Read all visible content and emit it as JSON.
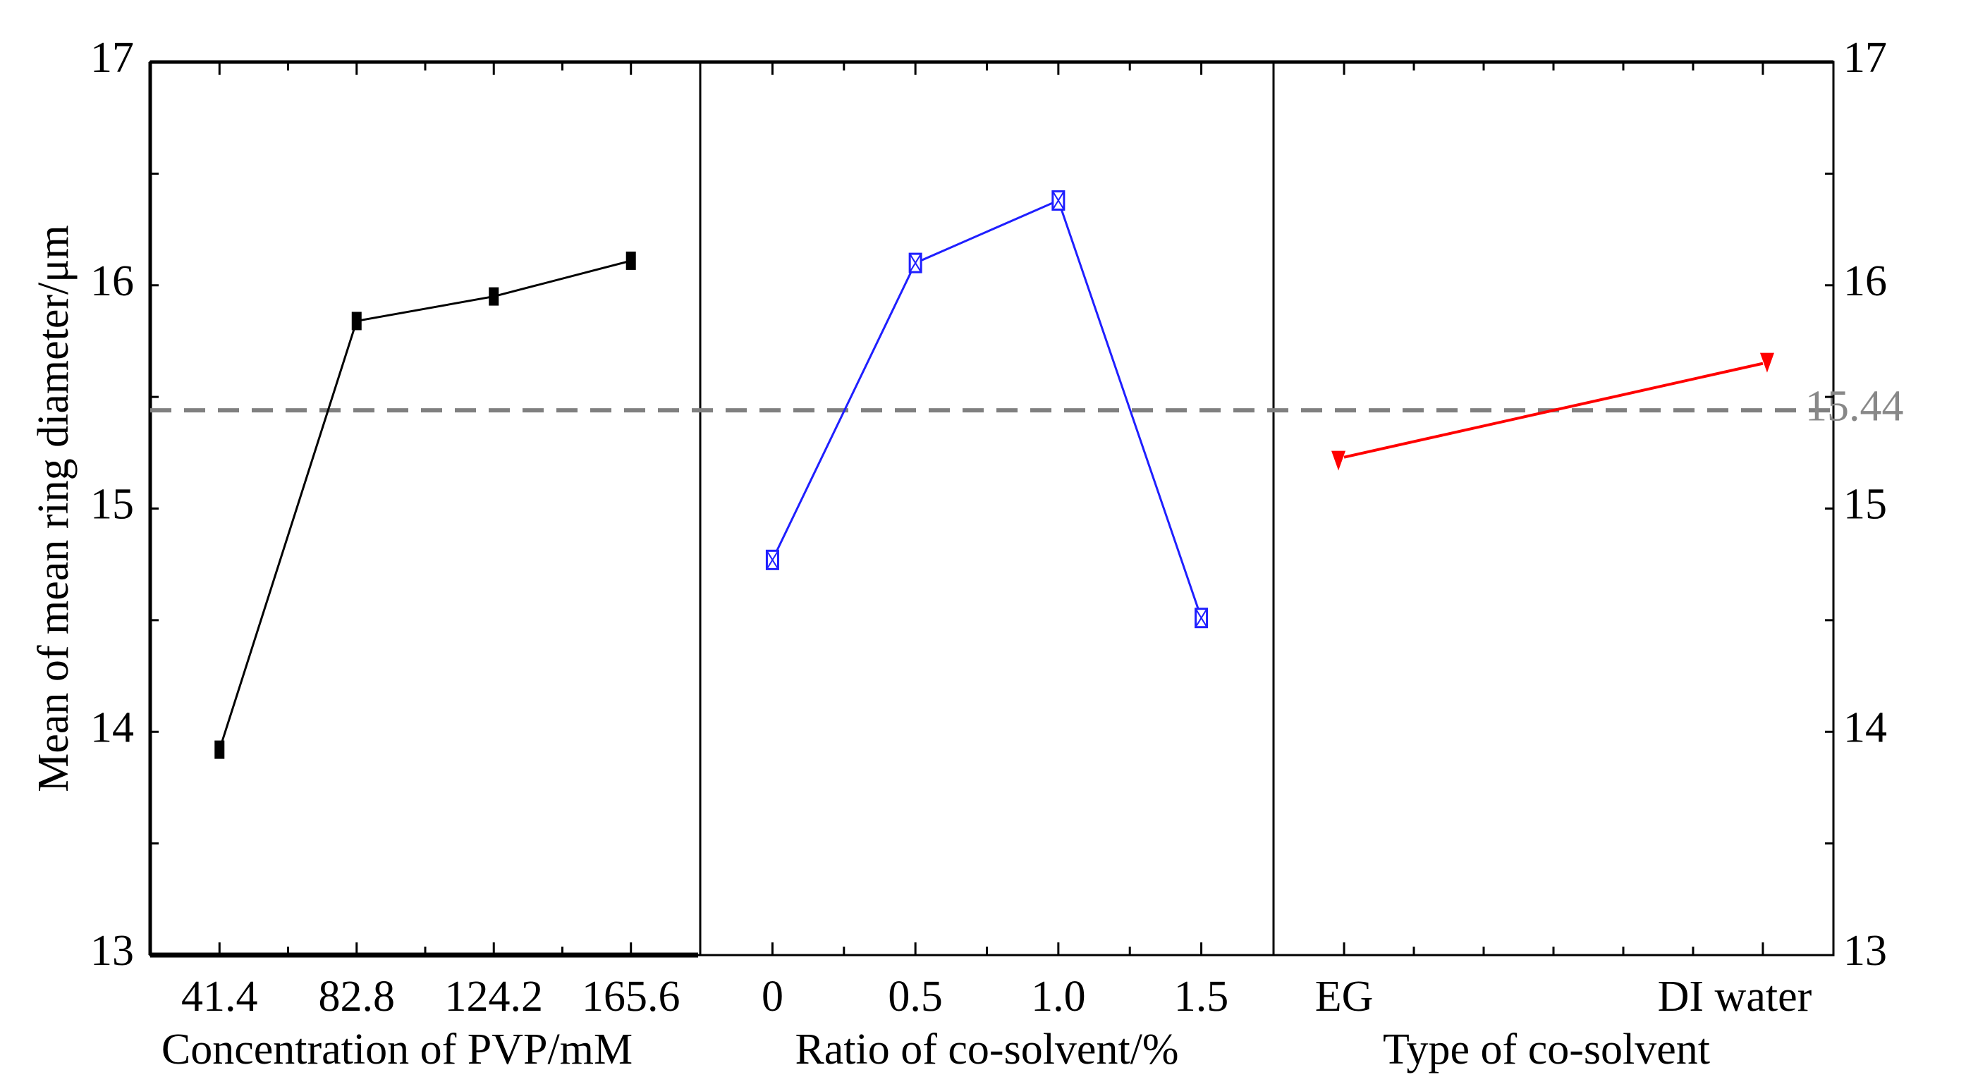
{
  "chart_data": {
    "type": "line",
    "title": "",
    "ylabel": "Mean of mean ring diameter/μm",
    "ylim": [
      13,
      17
    ],
    "yticks": [
      13,
      14,
      15,
      16,
      17
    ],
    "ytick_labels": [
      "13",
      "14",
      "15",
      "16",
      "17"
    ],
    "grand_mean": 15.44,
    "grand_mean_label": "15.44",
    "grand_mean_color": "#808080",
    "panels": [
      {
        "xlabel": "Concentration of PVP/mM",
        "categories": [
          "41.4",
          "82.8",
          "124.2",
          "165.6"
        ],
        "values": [
          13.92,
          15.84,
          15.95,
          16.11
        ],
        "color": "#000000",
        "marker": "filled-rect"
      },
      {
        "xlabel": "Ratio of co-solvent/%",
        "categories": [
          "0",
          "0.5",
          "1.0",
          "1.5"
        ],
        "values": [
          14.77,
          16.1,
          16.38,
          14.51
        ],
        "color": "#1f1fff",
        "marker": "hollow-x-box"
      },
      {
        "xlabel": "Type of co-solvent",
        "categories": [
          "EG",
          "DI water"
        ],
        "values": [
          15.23,
          15.65
        ],
        "color": "#ff0000",
        "marker": "down-triangle"
      }
    ]
  }
}
